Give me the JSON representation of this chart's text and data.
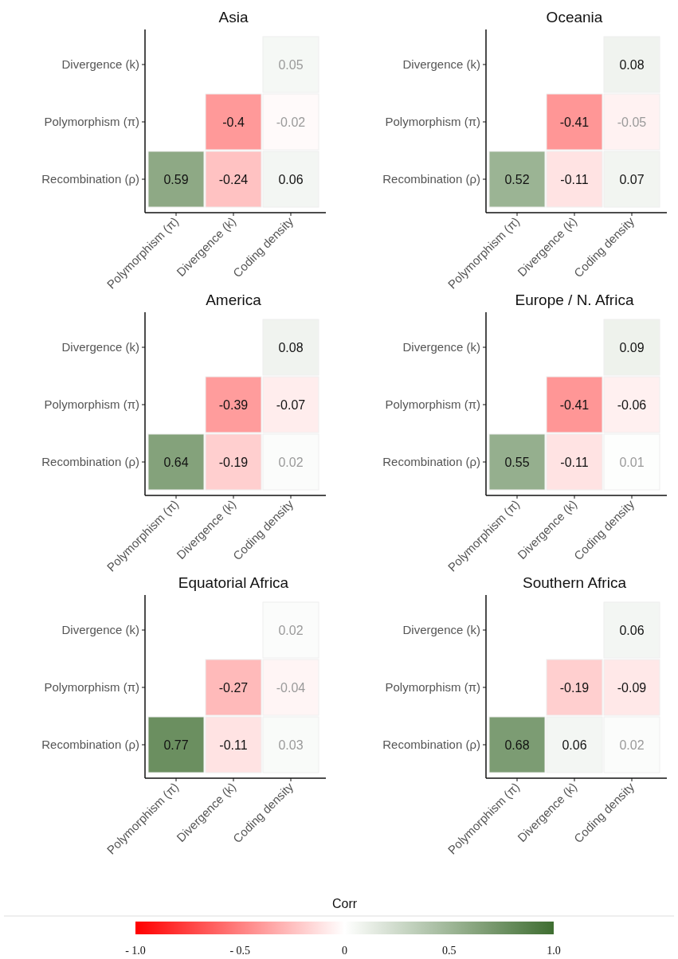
{
  "chart_data": [
    {
      "type": "heatmap",
      "title": "Asia",
      "categories": [
        "Polymorphism (π)",
        "Divergence (k)",
        "Coding density"
      ],
      "y_categories": [
        "Divergence (k)",
        "Polymorphism (π)",
        "Recombination (ρ)"
      ],
      "cells": [
        [
          null,
          null,
          0.05
        ],
        [
          null,
          -0.4,
          -0.02
        ],
        [
          0.59,
          -0.24,
          0.06
        ]
      ],
      "data_labels": true
    },
    {
      "type": "heatmap",
      "title": "Oceania",
      "categories": [
        "Polymorphism (π)",
        "Divergence (k)",
        "Coding density"
      ],
      "y_categories": [
        "Divergence (k)",
        "Polymorphism (π)",
        "Recombination (ρ)"
      ],
      "cells": [
        [
          null,
          null,
          0.08
        ],
        [
          null,
          -0.41,
          -0.05
        ],
        [
          0.52,
          -0.11,
          0.07
        ]
      ],
      "data_labels": true
    },
    {
      "type": "heatmap",
      "title": "America",
      "categories": [
        "Polymorphism (π)",
        "Divergence (k)",
        "Coding density"
      ],
      "y_categories": [
        "Divergence (k)",
        "Polymorphism (π)",
        "Recombination (ρ)"
      ],
      "cells": [
        [
          null,
          null,
          0.08
        ],
        [
          null,
          -0.39,
          -0.07
        ],
        [
          0.64,
          -0.19,
          0.02
        ]
      ],
      "data_labels": true
    },
    {
      "type": "heatmap",
      "title": "Europe / N. Africa",
      "categories": [
        "Polymorphism (π)",
        "Divergence (k)",
        "Coding density"
      ],
      "y_categories": [
        "Divergence (k)",
        "Polymorphism (π)",
        "Recombination (ρ)"
      ],
      "cells": [
        [
          null,
          null,
          0.09
        ],
        [
          null,
          -0.41,
          -0.06
        ],
        [
          0.55,
          -0.11,
          0.01
        ]
      ],
      "data_labels": true
    },
    {
      "type": "heatmap",
      "title": "Equatorial Africa",
      "categories": [
        "Polymorphism (π)",
        "Divergence (k)",
        "Coding density"
      ],
      "y_categories": [
        "Divergence (k)",
        "Polymorphism (π)",
        "Recombination (ρ)"
      ],
      "cells": [
        [
          null,
          null,
          0.02
        ],
        [
          null,
          -0.27,
          -0.04
        ],
        [
          0.77,
          -0.11,
          0.03
        ]
      ],
      "data_labels": true
    },
    {
      "type": "heatmap",
      "title": "Southern Africa",
      "categories": [
        "Polymorphism (π)",
        "Divergence (k)",
        "Coding density"
      ],
      "y_categories": [
        "Divergence (k)",
        "Polymorphism (π)",
        "Recombination (ρ)"
      ],
      "cells": [
        [
          null,
          null,
          0.06
        ],
        [
          null,
          -0.19,
          -0.09
        ],
        [
          0.68,
          0.06,
          0.02
        ]
      ],
      "data_labels": true,
      "clim": [
        -1,
        1
      ],
      "clabel": "Corr",
      "cticks": [
        {
          "value": -1,
          "label": "- 1.0"
        },
        {
          "value": -0.5,
          "label": "- 0.5"
        },
        0,
        0.5,
        {
          "value": 1,
          "label": "1.0"
        }
      ]
    }
  ]
}
